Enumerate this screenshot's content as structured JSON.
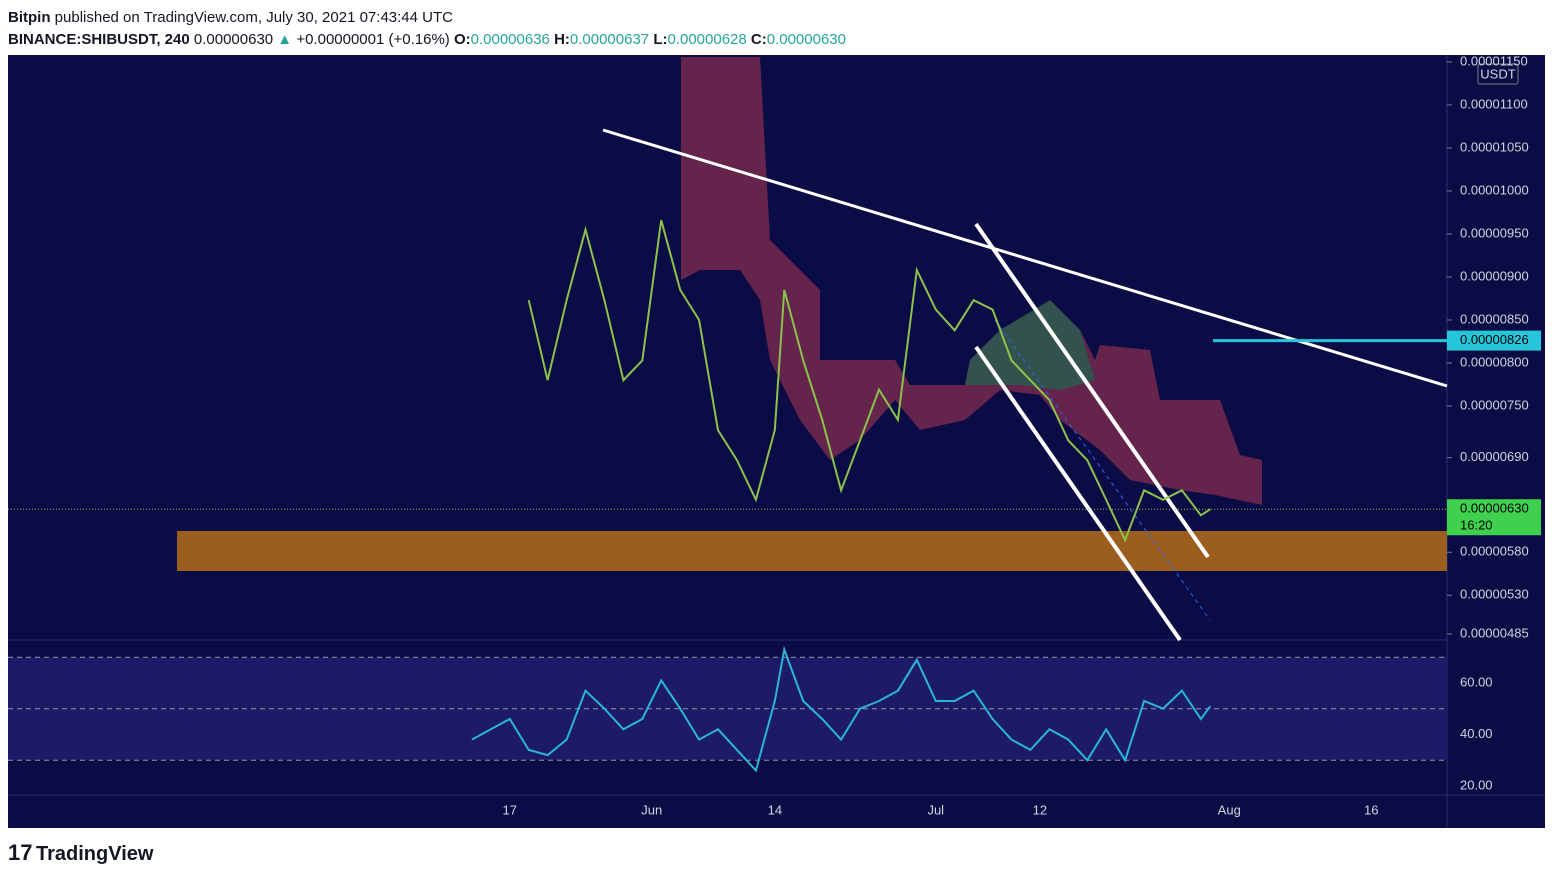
{
  "header": {
    "publisher": "Bitpin",
    "published": "published on TradingView.com, July 30, 2021 07:43:44 UTC",
    "symbol": "BINANCE:SHIBUSDT, 240",
    "price": "0.00000630",
    "arrow": "▲",
    "change": "+0.00000001 (+0.16%)",
    "o_label": "O:",
    "o": "0.00000636",
    "h_label": "H:",
    "h": "0.00000637",
    "l_label": "L:",
    "l": "0.00000628",
    "c_label": "C:",
    "c": "0.00000630"
  },
  "footer": {
    "brand": "TradingView"
  },
  "chart_data": [
    {
      "type": "line",
      "currency": "USDT",
      "color": "#8bc34a",
      "x": [
        "2021-05-19",
        "2021-05-21",
        "2021-05-23",
        "2021-05-25",
        "2021-05-27",
        "2021-05-29",
        "2021-05-31",
        "2021-06-02",
        "2021-06-04",
        "2021-06-06",
        "2021-06-08",
        "2021-06-10",
        "2021-06-12",
        "2021-06-14",
        "2021-06-15",
        "2021-06-17",
        "2021-06-19",
        "2021-06-21",
        "2021-06-23",
        "2021-06-25",
        "2021-06-27",
        "2021-06-29",
        "2021-07-01",
        "2021-07-03",
        "2021-07-05",
        "2021-07-07",
        "2021-07-09",
        "2021-07-11",
        "2021-07-13",
        "2021-07-15",
        "2021-07-17",
        "2021-07-19",
        "2021-07-21",
        "2021-07-23",
        "2021-07-25",
        "2021-07-27",
        "2021-07-29",
        "2021-07-30"
      ],
      "values": [
        8.73e-06,
        7.8e-06,
        8.73e-06,
        9.55e-06,
        8.73e-06,
        7.8e-06,
        8.03e-06,
        9.66e-06,
        8.85e-06,
        8.5e-06,
        7.22e-06,
        6.87e-06,
        6.41e-06,
        7.22e-06,
        8.85e-06,
        8.03e-06,
        7.34e-06,
        6.52e-06,
        7.1e-06,
        7.69e-06,
        7.34e-06,
        9.08e-06,
        8.62e-06,
        8.38e-06,
        8.73e-06,
        8.62e-06,
        8.03e-06,
        7.8e-06,
        7.57e-06,
        7.1e-06,
        6.87e-06,
        6.41e-06,
        5.94e-06,
        6.52e-06,
        6.41e-06,
        6.52e-06,
        6.23e-06,
        6.3e-06
      ],
      "xlim": [
        "2021-03-25",
        "2021-08-24"
      ],
      "xticks": [
        {
          "value": "2021-05-17",
          "label": "17"
        },
        {
          "value": "2021-06-01",
          "label": "Jun"
        },
        {
          "value": "2021-06-14",
          "label": "14"
        },
        {
          "value": "2021-07-01",
          "label": "Jul"
        },
        {
          "value": "2021-07-12",
          "label": "12"
        },
        {
          "value": "2021-08-01",
          "label": "Aug"
        },
        {
          "value": "2021-08-16",
          "label": "16"
        }
      ],
      "ylim": [
        4.78e-06,
        1.158e-05
      ],
      "yticks": [
        {
          "value": 1.15e-05,
          "label": "0.00001150"
        },
        {
          "value": 1.1e-05,
          "label": "0.00001100"
        },
        {
          "value": 1.05e-05,
          "label": "0.00001050"
        },
        {
          "value": 1e-05,
          "label": "0.00001000"
        },
        {
          "value": 9.5e-06,
          "label": "0.00000950"
        },
        {
          "value": 9e-06,
          "label": "0.00000900"
        },
        {
          "value": 8.5e-06,
          "label": "0.00000850"
        },
        {
          "value": 8e-06,
          "label": "0.00000800"
        },
        {
          "value": 7.5e-06,
          "label": "0.00000750"
        },
        {
          "value": 6.9e-06,
          "label": "0.00000690"
        },
        {
          "value": 5.8e-06,
          "label": "0.00000580"
        },
        {
          "value": 5.3e-06,
          "label": "0.00000530"
        },
        {
          "value": 4.85e-06,
          "label": "0.00000485"
        }
      ],
      "last_price": {
        "value": 6.3e-06,
        "label": "0.00000630",
        "countdown": "16:20"
      },
      "level": {
        "value": 8.26e-06,
        "label": "0.00000826",
        "color": "#26c6da"
      }
    },
    {
      "type": "line",
      "color": "#29b6d6",
      "x": [
        "2021-05-13",
        "2021-05-15",
        "2021-05-17",
        "2021-05-19",
        "2021-05-21",
        "2021-05-23",
        "2021-05-25",
        "2021-05-27",
        "2021-05-29",
        "2021-05-31",
        "2021-06-02",
        "2021-06-04",
        "2021-06-06",
        "2021-06-08",
        "2021-06-10",
        "2021-06-12",
        "2021-06-14",
        "2021-06-15",
        "2021-06-17",
        "2021-06-19",
        "2021-06-21",
        "2021-06-23",
        "2021-06-25",
        "2021-06-27",
        "2021-06-29",
        "2021-07-01",
        "2021-07-03",
        "2021-07-05",
        "2021-07-07",
        "2021-07-09",
        "2021-07-11",
        "2021-07-13",
        "2021-07-15",
        "2021-07-17",
        "2021-07-19",
        "2021-07-21",
        "2021-07-23",
        "2021-07-25",
        "2021-07-27",
        "2021-07-29",
        "2021-07-30"
      ],
      "values": [
        38,
        42,
        46,
        34,
        32,
        38,
        57,
        50,
        42,
        46,
        61,
        50,
        38,
        42,
        34,
        26,
        53,
        73,
        53,
        46,
        38,
        50,
        53,
        57,
        69,
        53,
        53,
        57,
        46,
        38,
        34,
        42,
        38,
        30,
        42,
        30,
        53,
        50,
        57,
        46,
        51
      ],
      "ylim": [
        16.5,
        76.7
      ],
      "yticks": [
        {
          "value": 60,
          "label": "60.00"
        },
        {
          "value": 40,
          "label": "40.00"
        },
        {
          "value": 20,
          "label": "20.00"
        }
      ],
      "bands": [
        70,
        50,
        30
      ]
    }
  ]
}
